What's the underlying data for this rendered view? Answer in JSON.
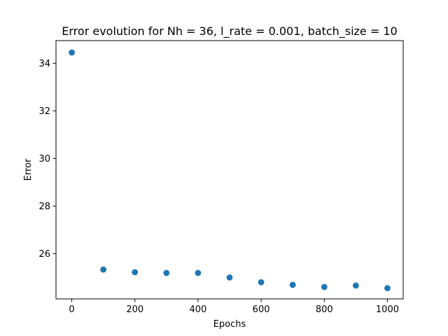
{
  "chart_data": {
    "type": "scatter",
    "title": "Error evolution for Nh = 36, l_rate = 0.001, batch_size = 10",
    "xlabel": "Epochs",
    "ylabel": "Error",
    "x": [
      0,
      100,
      200,
      300,
      400,
      500,
      600,
      700,
      800,
      900,
      1000
    ],
    "y": [
      34.45,
      25.33,
      25.22,
      25.19,
      25.19,
      25.0,
      24.8,
      24.69,
      24.6,
      24.66,
      24.55
    ],
    "xlim": [
      -50,
      1050
    ],
    "ylim": [
      24.1,
      34.95
    ],
    "xticks": [
      0,
      200,
      400,
      600,
      800,
      1000
    ],
    "yticks": [
      26,
      28,
      30,
      32,
      34
    ],
    "marker_color": "#1f77b4",
    "grid": false
  }
}
